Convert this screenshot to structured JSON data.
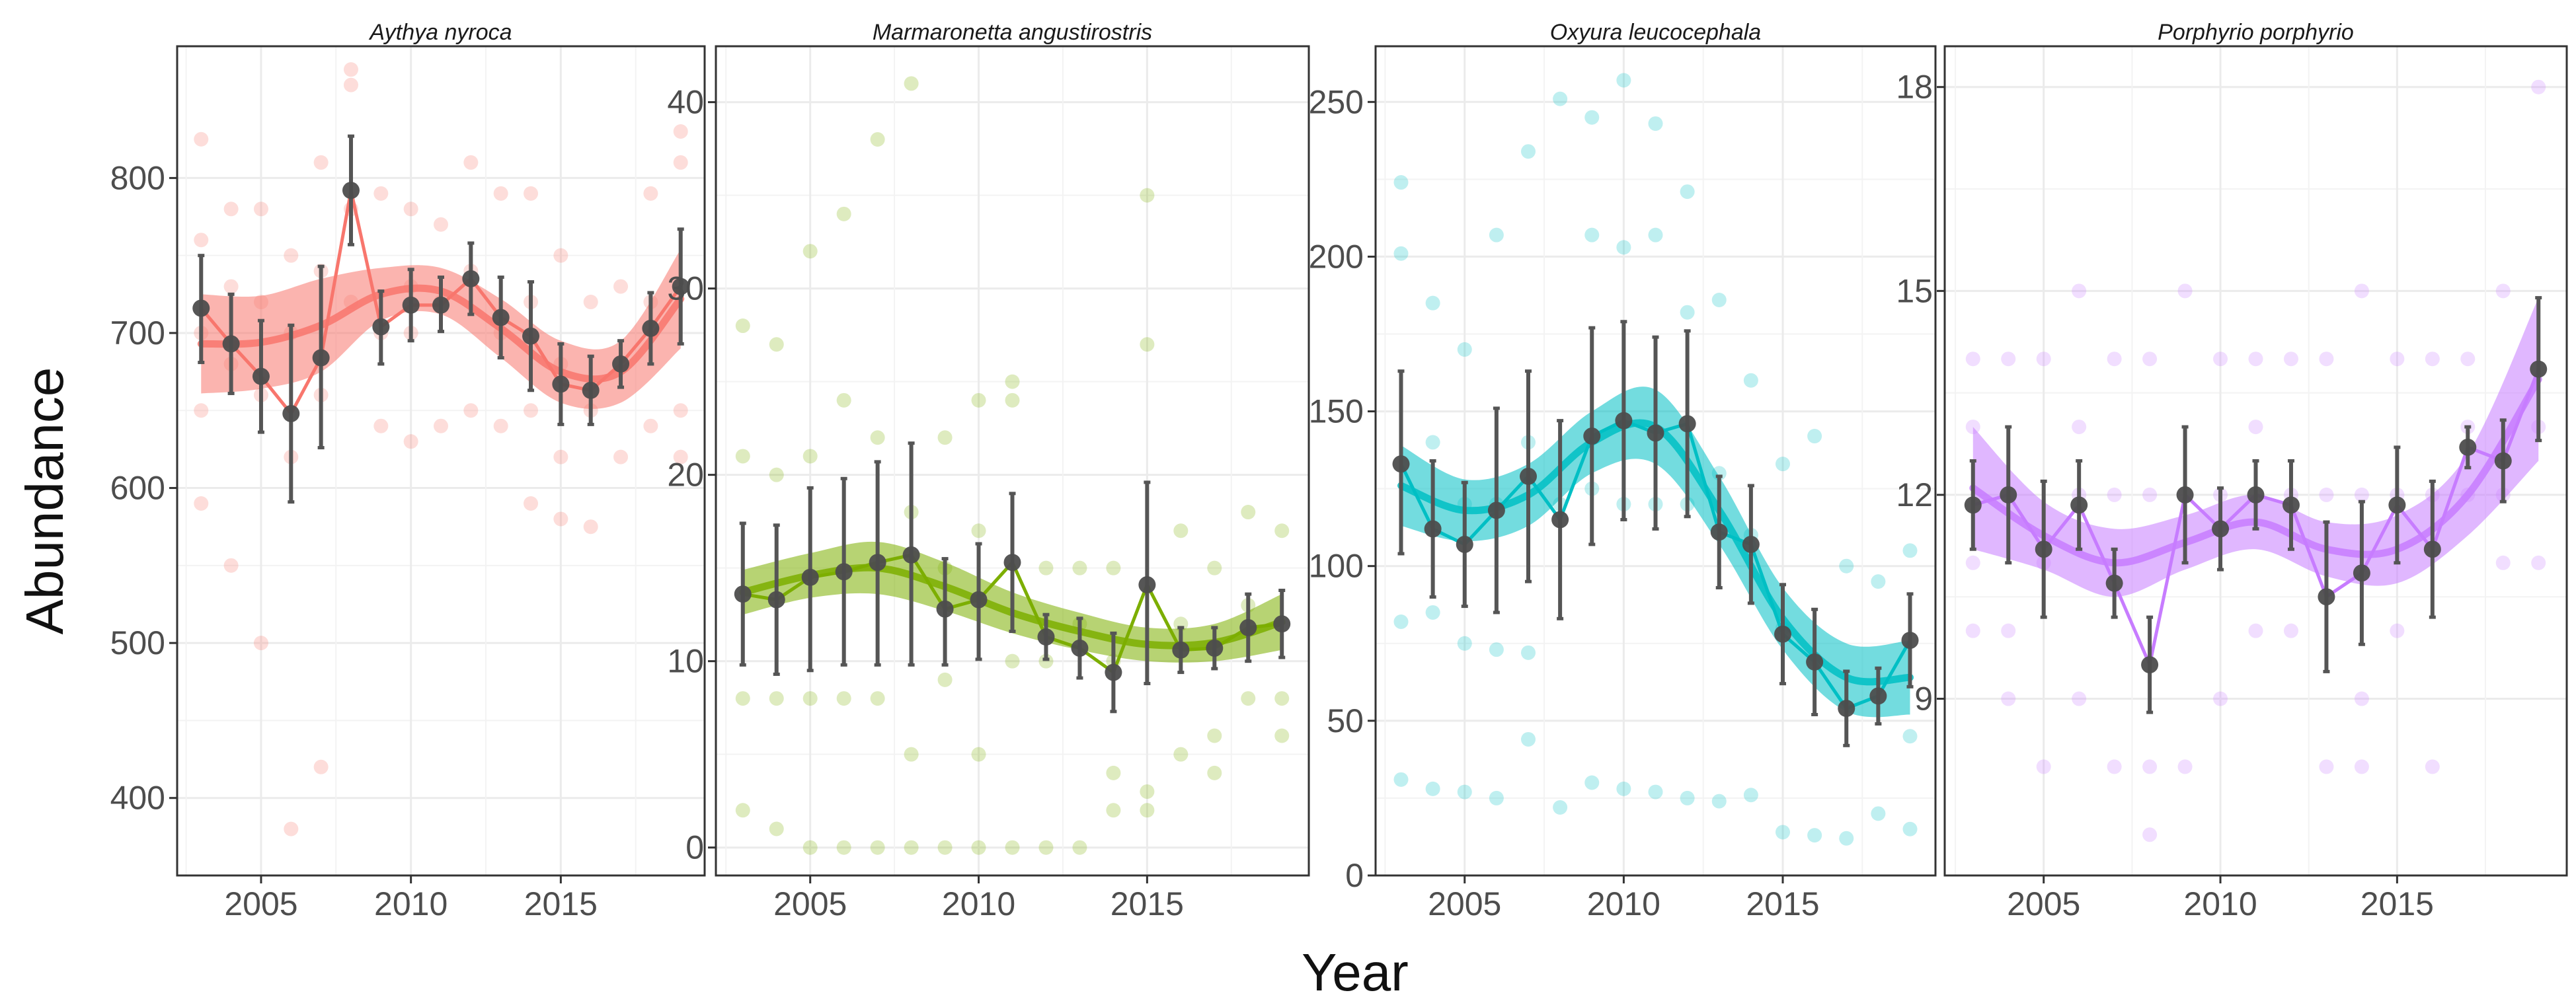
{
  "chart_data": {
    "type": "line",
    "xlabel": "Year",
    "ylabel": "Abundance",
    "panels": [
      {
        "title": "Aythya nyroca",
        "color": "#F8766D",
        "xlim": [
          2002.2,
          2019.8
        ],
        "ylim": [
          350,
          885
        ],
        "x_ticks": [
          2005,
          2010,
          2015
        ],
        "y_ticks": [
          400,
          500,
          600,
          700,
          800
        ],
        "mean": {
          "x": [
            2003,
            2004,
            2005,
            2006,
            2007,
            2008,
            2009,
            2010,
            2011,
            2012,
            2013,
            2014,
            2015,
            2016,
            2017,
            2018,
            2019
          ],
          "y": [
            716,
            693,
            672,
            648,
            684,
            792,
            704,
            718,
            718,
            735,
            710,
            698,
            667,
            663,
            680,
            703,
            730
          ],
          "lower": [
            681,
            661,
            636,
            591,
            626,
            757,
            680,
            695,
            701,
            712,
            684,
            663,
            641,
            641,
            665,
            680,
            693
          ],
          "upper": [
            750,
            725,
            708,
            705,
            743,
            827,
            727,
            741,
            736,
            758,
            736,
            733,
            693,
            685,
            695,
            726,
            767
          ]
        },
        "smooth": {
          "x": [
            2003,
            2005,
            2007,
            2009,
            2011,
            2013,
            2015,
            2017,
            2019
          ],
          "y": [
            693,
            694,
            705,
            725,
            727,
            703,
            675,
            675,
            722
          ],
          "lower": [
            661,
            664,
            675,
            708,
            712,
            684,
            655,
            655,
            690
          ],
          "upper": [
            725,
            724,
            735,
            742,
            742,
            722,
            695,
            695,
            754
          ]
        },
        "raw": {
          "x": [
            2003,
            2003,
            2003,
            2003,
            2003,
            2004,
            2004,
            2004,
            2004,
            2005,
            2005,
            2005,
            2005,
            2006,
            2006,
            2006,
            2006,
            2007,
            2007,
            2007,
            2007,
            2008,
            2008,
            2008,
            2008,
            2009,
            2009,
            2009,
            2010,
            2010,
            2010,
            2010,
            2011,
            2011,
            2011,
            2012,
            2012,
            2012,
            2013,
            2013,
            2013,
            2014,
            2014,
            2014,
            2014,
            2015,
            2015,
            2015,
            2015,
            2016,
            2016,
            2016,
            2017,
            2017,
            2017,
            2018,
            2018,
            2018,
            2019,
            2019,
            2019,
            2019
          ],
          "y": [
            825,
            760,
            700,
            650,
            590,
            780,
            730,
            680,
            550,
            780,
            720,
            660,
            500,
            750,
            700,
            620,
            380,
            810,
            740,
            660,
            420,
            870,
            860,
            780,
            720,
            790,
            700,
            640,
            780,
            730,
            700,
            630,
            770,
            720,
            640,
            810,
            740,
            650,
            790,
            700,
            640,
            790,
            720,
            650,
            590,
            750,
            680,
            620,
            580,
            720,
            650,
            575,
            730,
            680,
            620,
            790,
            720,
            640,
            830,
            810,
            650,
            620
          ]
        }
      },
      {
        "title": "Marmaronetta angustirostris",
        "color": "#7CAE00",
        "xlim": [
          2002.2,
          2019.8
        ],
        "ylim": [
          -1.5,
          43
        ],
        "x_ticks": [
          2005,
          2010,
          2015
        ],
        "y_ticks": [
          0,
          10,
          20,
          30,
          40
        ],
        "mean": {
          "x": [
            2003,
            2004,
            2005,
            2006,
            2007,
            2008,
            2009,
            2010,
            2011,
            2012,
            2013,
            2014,
            2015,
            2016,
            2017,
            2018,
            2019
          ],
          "y": [
            13.6,
            13.3,
            14.5,
            14.8,
            15.3,
            15.7,
            12.8,
            13.3,
            15.3,
            11.3,
            10.7,
            9.4,
            14.1,
            10.6,
            10.7,
            11.8,
            12.0
          ],
          "lower": [
            9.8,
            9.3,
            9.5,
            9.8,
            9.8,
            9.8,
            9.8,
            10.1,
            11.6,
            10.1,
            9.1,
            7.3,
            8.8,
            9.4,
            9.6,
            10.0,
            10.2
          ],
          "upper": [
            17.4,
            17.3,
            19.3,
            19.8,
            20.7,
            21.7,
            15.5,
            16.3,
            19.0,
            12.5,
            12.3,
            11.5,
            19.6,
            11.8,
            11.8,
            13.6,
            13.8
          ]
        },
        "smooth": {
          "x": [
            2003,
            2005,
            2007,
            2009,
            2011,
            2013,
            2015,
            2017,
            2019
          ],
          "y": [
            13.7,
            14.6,
            15.0,
            14.0,
            12.6,
            11.6,
            10.9,
            11.0,
            12.1
          ],
          "lower": [
            12.5,
            13.4,
            13.6,
            12.7,
            11.5,
            10.6,
            10.0,
            10.0,
            10.6
          ],
          "upper": [
            14.9,
            15.8,
            16.4,
            15.3,
            13.7,
            12.6,
            11.8,
            12.0,
            13.6
          ]
        },
        "raw": {
          "x": [
            2003,
            2003,
            2003,
            2003,
            2004,
            2004,
            2004,
            2004,
            2005,
            2005,
            2005,
            2005,
            2006,
            2006,
            2006,
            2006,
            2007,
            2007,
            2007,
            2007,
            2008,
            2008,
            2008,
            2008,
            2009,
            2009,
            2009,
            2009,
            2010,
            2010,
            2010,
            2010,
            2011,
            2011,
            2011,
            2011,
            2012,
            2012,
            2012,
            2013,
            2013,
            2013,
            2014,
            2014,
            2014,
            2014,
            2015,
            2015,
            2015,
            2015,
            2016,
            2016,
            2016,
            2017,
            2017,
            2017,
            2018,
            2018,
            2018,
            2019,
            2019,
            2019
          ],
          "y": [
            28,
            21,
            8,
            2,
            27,
            20,
            8,
            1,
            32,
            21,
            8,
            0,
            34,
            24,
            8,
            0,
            38,
            22,
            8,
            0,
            41,
            18,
            5,
            0,
            22,
            15,
            9,
            0,
            24,
            17,
            5,
            0,
            25,
            24,
            10,
            0,
            15,
            10,
            0,
            15,
            12,
            0,
            15,
            10,
            4,
            2,
            35,
            27,
            3,
            2,
            17,
            12,
            5,
            15,
            6,
            4,
            18,
            13,
            8,
            17,
            8,
            6
          ]
        }
      },
      {
        "title": "Oxyura leucocephala",
        "color": "#00BFC4",
        "xlim": [
          2002.2,
          2019.8
        ],
        "ylim": [
          0,
          268
        ],
        "x_ticks": [
          2005,
          2010,
          2015
        ],
        "y_ticks": [
          0,
          50,
          100,
          150,
          200,
          250
        ],
        "mean": {
          "x": [
            2003,
            2004,
            2005,
            2006,
            2007,
            2008,
            2009,
            2010,
            2011,
            2012,
            2013,
            2014,
            2015,
            2016,
            2017,
            2018,
            2019
          ],
          "y": [
            133,
            112,
            107,
            118,
            129,
            115,
            142,
            147,
            143,
            146,
            111,
            107,
            78,
            69,
            54,
            58,
            76
          ],
          "lower": [
            104,
            90,
            87,
            85,
            95,
            83,
            107,
            115,
            112,
            116,
            93,
            88,
            62,
            52,
            42,
            49,
            61
          ],
          "upper": [
            163,
            134,
            127,
            151,
            163,
            147,
            177,
            179,
            174,
            176,
            129,
            126,
            94,
            86,
            66,
            67,
            91
          ]
        },
        "smooth": {
          "x": [
            2003,
            2005,
            2007,
            2009,
            2011,
            2013,
            2015,
            2017,
            2019
          ],
          "y": [
            126,
            118,
            123,
            140,
            145,
            118,
            83,
            64,
            64
          ],
          "lower": [
            113,
            108,
            113,
            130,
            133,
            107,
            73,
            53,
            52
          ],
          "upper": [
            139,
            128,
            133,
            150,
            157,
            129,
            93,
            75,
            76
          ]
        },
        "raw": {
          "x": [
            2003,
            2003,
            2003,
            2003,
            2004,
            2004,
            2004,
            2004,
            2005,
            2005,
            2005,
            2005,
            2006,
            2006,
            2006,
            2006,
            2007,
            2007,
            2007,
            2007,
            2008,
            2008,
            2008,
            2009,
            2009,
            2009,
            2009,
            2010,
            2010,
            2010,
            2010,
            2011,
            2011,
            2011,
            2011,
            2012,
            2012,
            2012,
            2012,
            2013,
            2013,
            2013,
            2014,
            2014,
            2014,
            2015,
            2015,
            2015,
            2016,
            2016,
            2016,
            2017,
            2017,
            2018,
            2018,
            2019,
            2019,
            2019
          ],
          "y": [
            224,
            201,
            82,
            31,
            185,
            140,
            85,
            28,
            170,
            120,
            75,
            27,
            207,
            120,
            73,
            25,
            234,
            140,
            72,
            44,
            251,
            120,
            22,
            245,
            207,
            125,
            30,
            257,
            203,
            120,
            28,
            243,
            207,
            120,
            27,
            221,
            182,
            120,
            25,
            186,
            130,
            24,
            160,
            110,
            26,
            133,
            80,
            14,
            142,
            70,
            13,
            100,
            12,
            95,
            20,
            105,
            45,
            15
          ]
        }
      },
      {
        "title": "Porphyrio porphyrio",
        "color": "#C77CFF",
        "xlim": [
          2002.2,
          2019.8
        ],
        "ylim": [
          6.4,
          18.6
        ],
        "x_ticks": [
          2005,
          2010,
          2015
        ],
        "y_ticks": [
          9,
          12,
          15,
          18
        ],
        "mean": {
          "x": [
            2003,
            2004,
            2005,
            2006,
            2007,
            2008,
            2009,
            2010,
            2011,
            2012,
            2013,
            2014,
            2015,
            2016,
            2017,
            2018,
            2019
          ],
          "y": [
            11.85,
            12.0,
            11.2,
            11.85,
            10.7,
            9.5,
            12.0,
            11.5,
            12.0,
            11.85,
            10.5,
            10.85,
            11.85,
            11.2,
            12.7,
            12.5,
            13.85
          ],
          "lower": [
            11.2,
            11.0,
            10.2,
            11.2,
            10.2,
            8.8,
            11.0,
            10.9,
            11.5,
            11.2,
            9.4,
            9.8,
            11.0,
            10.2,
            12.4,
            11.9,
            12.8
          ],
          "upper": [
            12.5,
            13.0,
            12.2,
            12.5,
            11.2,
            10.2,
            13.0,
            12.1,
            12.5,
            12.5,
            11.6,
            11.9,
            12.7,
            12.2,
            13.0,
            13.1,
            14.9
          ]
        },
        "smooth": {
          "x": [
            2003,
            2005,
            2007,
            2009,
            2011,
            2013,
            2015,
            2017,
            2019
          ],
          "y": [
            12.1,
            11.4,
            11.0,
            11.3,
            11.6,
            11.2,
            11.2,
            12.0,
            13.7
          ],
          "lower": [
            11.2,
            10.9,
            10.5,
            10.9,
            11.2,
            10.8,
            10.7,
            11.4,
            12.5
          ],
          "upper": [
            13.0,
            11.9,
            11.5,
            11.7,
            12.0,
            11.6,
            11.7,
            12.6,
            14.9
          ]
        },
        "raw": {
          "x": [
            2003,
            2003,
            2003,
            2003,
            2004,
            2004,
            2004,
            2004,
            2005,
            2005,
            2005,
            2006,
            2006,
            2006,
            2006,
            2007,
            2007,
            2007,
            2008,
            2008,
            2008,
            2008,
            2009,
            2009,
            2009,
            2010,
            2010,
            2010,
            2011,
            2011,
            2011,
            2012,
            2012,
            2012,
            2013,
            2013,
            2013,
            2014,
            2014,
            2014,
            2014,
            2015,
            2015,
            2015,
            2016,
            2016,
            2016,
            2017,
            2017,
            2017,
            2018,
            2018,
            2018,
            2019,
            2019,
            2019
          ],
          "y": [
            14,
            13,
            11,
            10,
            14,
            12,
            10,
            9,
            14,
            11,
            8,
            15,
            13,
            12,
            9,
            14,
            12,
            8,
            14,
            12,
            8,
            7,
            15,
            12,
            8,
            14,
            12,
            9,
            14,
            13,
            10,
            14,
            12,
            10,
            14,
            12,
            8,
            15,
            12,
            9,
            8,
            14,
            12,
            10,
            14,
            12,
            8,
            14,
            13,
            12,
            15,
            12,
            11,
            18,
            13,
            11
          ]
        }
      }
    ]
  }
}
